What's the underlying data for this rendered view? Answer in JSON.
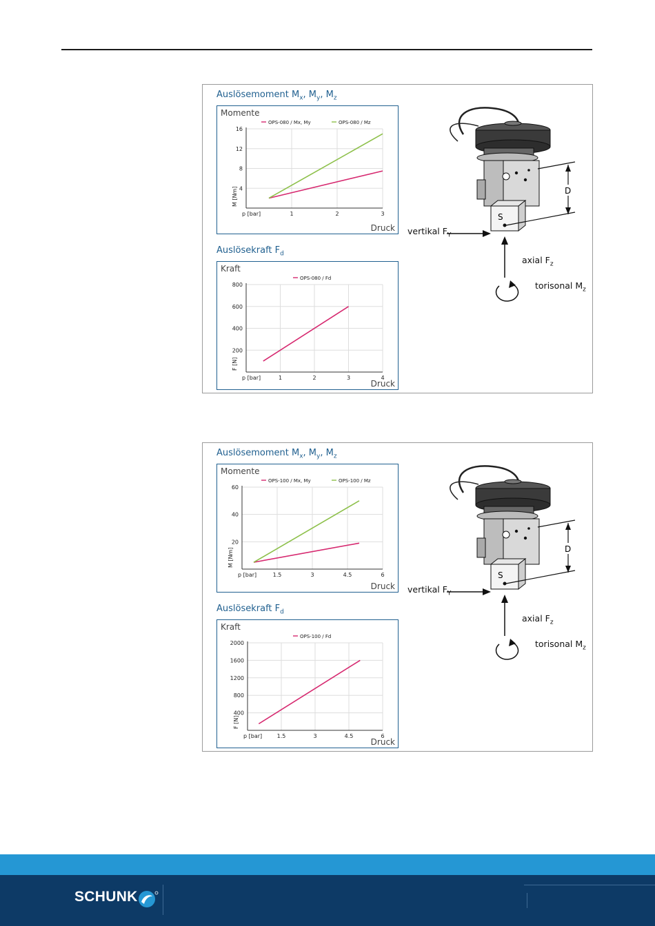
{
  "panels": [
    {
      "moment_title": "Auslösemoment M",
      "force_title": "Auslösekraft F",
      "moment_box_label": "Momente",
      "force_box_label": "Kraft",
      "axis_druck": "Druck",
      "diagram": {
        "vertikal": "vertikal F",
        "axial": "axial F",
        "torsional": "torisonal M",
        "label_d": "D",
        "label_s": "S"
      }
    },
    {
      "moment_title": "Auslösemoment M",
      "force_title": "Auslösekraft F",
      "moment_box_label": "Momente",
      "force_box_label": "Kraft",
      "axis_druck": "Druck",
      "diagram": {
        "vertikal": "vertikal F",
        "axial": "axial F",
        "torsional": "torisonal M",
        "label_d": "D",
        "label_s": "S"
      }
    }
  ],
  "footer": {
    "brand": "SCHUNK"
  },
  "colors": {
    "series_mxmy": "#d6286f",
    "series_mz": "#8dc04a",
    "title_blue": "#1f5f8f",
    "footer_light": "#2597d4",
    "footer_dark": "#0d3a66"
  },
  "chart_data": [
    {
      "type": "line",
      "title": "Momente",
      "xlabel": "p [bar]",
      "ylabel": "M [Nm]",
      "x_ticks": [
        1,
        2,
        3
      ],
      "y_ticks": [
        4,
        8,
        12,
        16
      ],
      "xlim": [
        0,
        3
      ],
      "ylim": [
        0,
        16
      ],
      "series": [
        {
          "name": "OPS-080 / Mx, My",
          "color": "#d6286f",
          "points": [
            [
              0.5,
              2
            ],
            [
              3,
              7.5
            ]
          ]
        },
        {
          "name": "OPS-080 / Mz",
          "color": "#8dc04a",
          "points": [
            [
              0.5,
              2
            ],
            [
              3,
              15
            ]
          ]
        }
      ]
    },
    {
      "type": "line",
      "title": "Kraft",
      "xlabel": "p [bar]",
      "ylabel": "F [N]",
      "x_ticks": [
        1,
        2,
        3,
        4
      ],
      "y_ticks": [
        200,
        400,
        600,
        800
      ],
      "xlim": [
        0,
        4
      ],
      "ylim": [
        0,
        800
      ],
      "series": [
        {
          "name": "OPS-080 / Fd",
          "color": "#d6286f",
          "points": [
            [
              0.5,
              100
            ],
            [
              3,
              600
            ]
          ]
        }
      ]
    },
    {
      "type": "line",
      "title": "Momente",
      "xlabel": "p [bar]",
      "ylabel": "M [Nm]",
      "x_ticks": [
        1.5,
        3,
        4.5,
        6
      ],
      "x_tick_labels": [
        "1.5",
        "3",
        "4.5",
        "6"
      ],
      "y_ticks": [
        20,
        40,
        60
      ],
      "xlim": [
        0,
        6
      ],
      "ylim": [
        0,
        60
      ],
      "series": [
        {
          "name": "OPS-100 / Mx, My",
          "color": "#d6286f",
          "points": [
            [
              0.5,
              5
            ],
            [
              5,
              19
            ]
          ]
        },
        {
          "name": "OPS-100 / Mz",
          "color": "#8dc04a",
          "points": [
            [
              0.5,
              5
            ],
            [
              5,
              50
            ]
          ]
        }
      ]
    },
    {
      "type": "line",
      "title": "Kraft",
      "xlabel": "p [bar]",
      "ylabel": "F [N]",
      "x_ticks": [
        1.5,
        3,
        4.5,
        6
      ],
      "x_tick_labels": [
        "1.5",
        "3",
        "4.5",
        "6"
      ],
      "y_ticks": [
        400,
        800,
        1200,
        1600,
        2000
      ],
      "xlim": [
        0,
        6
      ],
      "ylim": [
        0,
        2000
      ],
      "series": [
        {
          "name": "OPS-100 / Fd",
          "color": "#d6286f",
          "points": [
            [
              0.5,
              150
            ],
            [
              5,
              1600
            ]
          ]
        }
      ]
    }
  ]
}
